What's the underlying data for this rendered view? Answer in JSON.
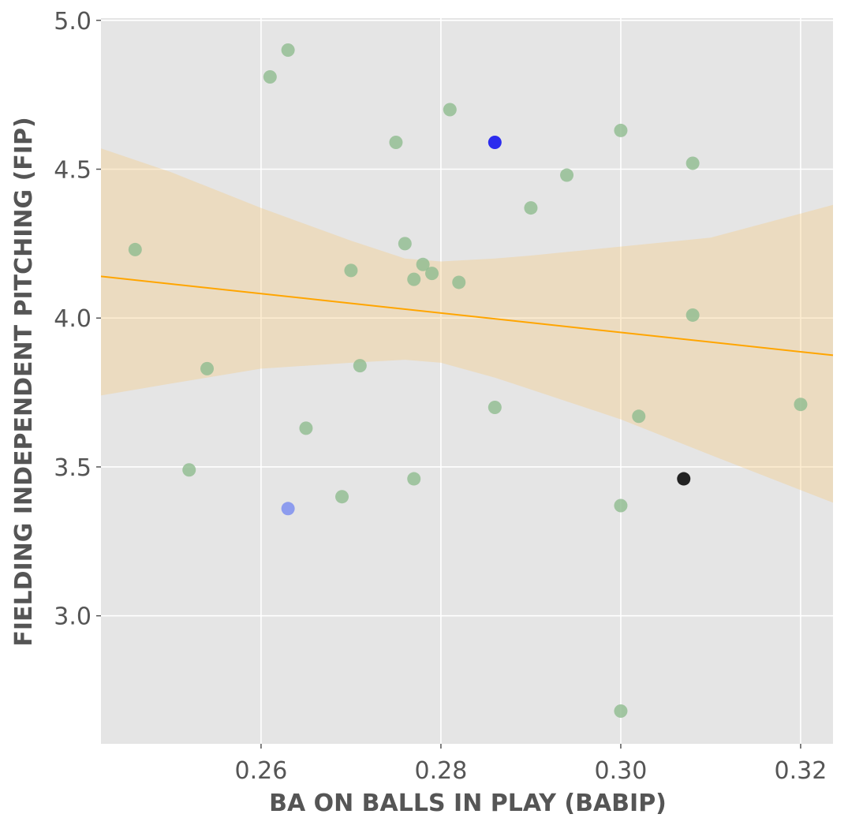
{
  "chart_data": {
    "type": "scatter",
    "title": "",
    "xlabel": "BA ON BALLS IN PLAY (BABIP)",
    "ylabel": "FIELDING INDEPENDENT PITCHING (FIP)",
    "xlim": [
      0.2422,
      0.3236
    ],
    "ylim": [
      2.57,
      5.01
    ],
    "xticks": [
      0.26,
      0.28,
      0.3,
      0.32
    ],
    "xtick_labels": [
      "0.26",
      "0.28",
      "0.30",
      "0.32"
    ],
    "yticks": [
      3.0,
      3.5,
      4.0,
      4.5,
      5.0
    ],
    "ytick_labels": [
      "3.0",
      "3.5",
      "4.0",
      "4.5",
      "5.0"
    ],
    "grid": true,
    "colors": {
      "background": "#e5e5e5",
      "grid": "#ffffff",
      "point": "#8fbc8f",
      "highlight_blue": "#2222ee",
      "highlight_light_blue": "#8898ee",
      "highlight_black": "#222222",
      "trend_line": "#ffa500",
      "confidence_band": "#f5c97a"
    },
    "points": [
      {
        "x": 0.246,
        "y": 4.23
      },
      {
        "x": 0.252,
        "y": 3.49
      },
      {
        "x": 0.254,
        "y": 3.83
      },
      {
        "x": 0.261,
        "y": 4.81
      },
      {
        "x": 0.263,
        "y": 4.9
      },
      {
        "x": 0.263,
        "y": 3.36,
        "highlight": "light_blue"
      },
      {
        "x": 0.265,
        "y": 3.63
      },
      {
        "x": 0.269,
        "y": 3.4
      },
      {
        "x": 0.27,
        "y": 4.16
      },
      {
        "x": 0.271,
        "y": 3.84
      },
      {
        "x": 0.275,
        "y": 4.59
      },
      {
        "x": 0.276,
        "y": 4.25
      },
      {
        "x": 0.277,
        "y": 4.13
      },
      {
        "x": 0.277,
        "y": 3.46
      },
      {
        "x": 0.278,
        "y": 4.18
      },
      {
        "x": 0.279,
        "y": 4.15
      },
      {
        "x": 0.281,
        "y": 4.7
      },
      {
        "x": 0.282,
        "y": 4.12
      },
      {
        "x": 0.286,
        "y": 4.59,
        "highlight": "blue"
      },
      {
        "x": 0.286,
        "y": 3.7
      },
      {
        "x": 0.29,
        "y": 4.37
      },
      {
        "x": 0.294,
        "y": 4.48
      },
      {
        "x": 0.3,
        "y": 4.63
      },
      {
        "x": 0.3,
        "y": 3.37
      },
      {
        "x": 0.3,
        "y": 2.68
      },
      {
        "x": 0.302,
        "y": 3.67
      },
      {
        "x": 0.307,
        "y": 3.46,
        "highlight": "black"
      },
      {
        "x": 0.308,
        "y": 4.52
      },
      {
        "x": 0.308,
        "y": 4.01
      },
      {
        "x": 0.32,
        "y": 3.71
      }
    ],
    "regression_line": {
      "x": [
        0.2422,
        0.3236
      ],
      "y": [
        4.14,
        3.875
      ]
    },
    "confidence_band": {
      "x": [
        0.2422,
        0.25,
        0.26,
        0.27,
        0.276,
        0.28,
        0.286,
        0.29,
        0.3,
        0.31,
        0.3236
      ],
      "upper": [
        4.57,
        4.49,
        4.37,
        4.26,
        4.2,
        4.19,
        4.2,
        4.21,
        4.24,
        4.27,
        4.38
      ],
      "lower": [
        3.74,
        3.78,
        3.83,
        3.85,
        3.86,
        3.85,
        3.8,
        3.76,
        3.66,
        3.54,
        3.38
      ]
    }
  }
}
